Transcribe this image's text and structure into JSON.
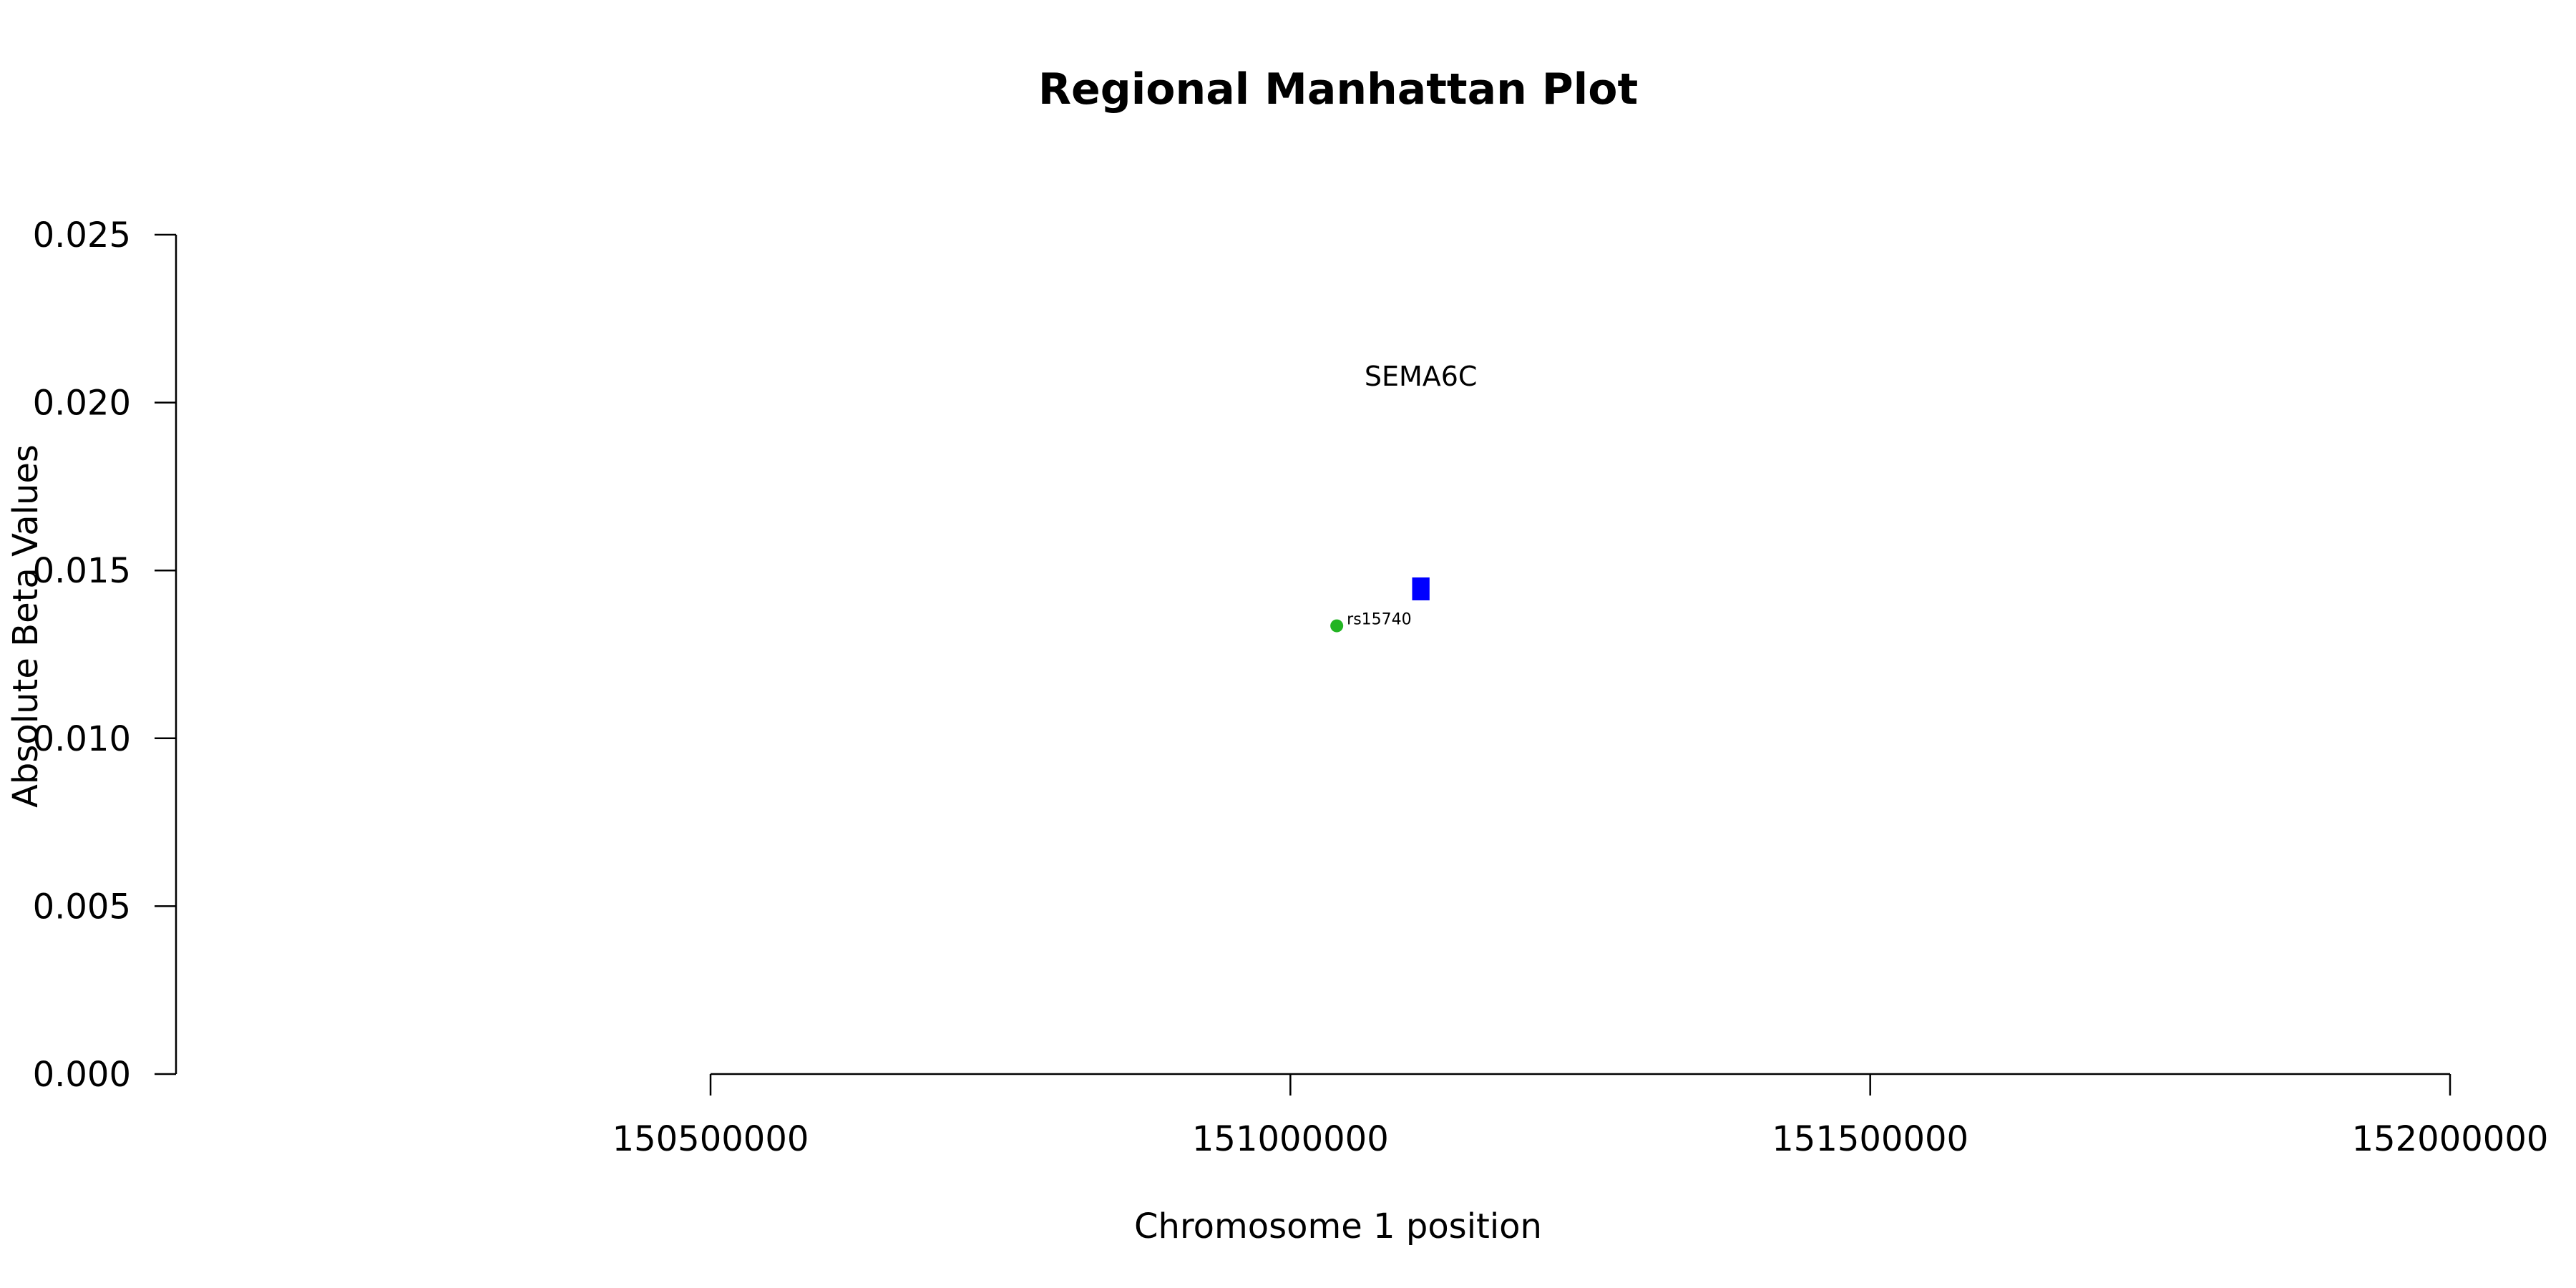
{
  "chart_data": {
    "type": "scatter",
    "title": "Regional Manhattan Plot",
    "xlabel": "Chromosome 1 position",
    "ylabel": "Absolute Beta Values",
    "xlim": [
      150500000,
      152000000
    ],
    "ylim": [
      0,
      0.025
    ],
    "x_ticks": [
      "150500000",
      "151000000",
      "151500000",
      "152000000"
    ],
    "y_ticks": [
      "0.000",
      "0.005",
      "0.010",
      "0.015",
      "0.020",
      "0.025"
    ],
    "grid": false,
    "points": [
      {
        "x": 151040000,
        "y": 0.01335,
        "label": "rs15740",
        "color": "#22b422"
      }
    ],
    "genes": [
      {
        "name": "SEMA6C",
        "start": 151105000,
        "end": 151120000,
        "y": 0.01445,
        "color": "#0000ff"
      }
    ]
  }
}
